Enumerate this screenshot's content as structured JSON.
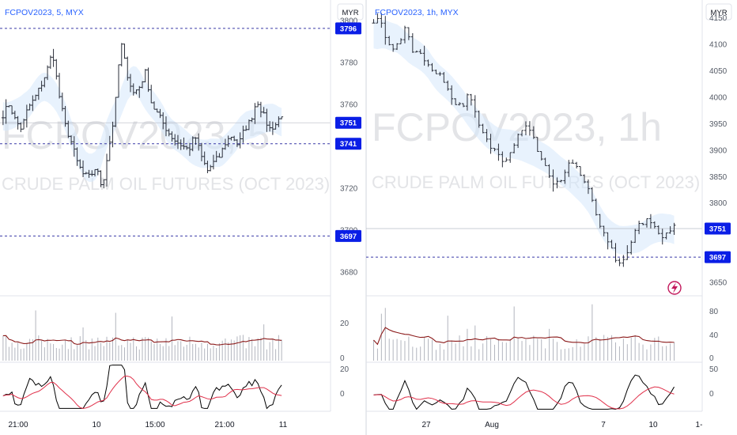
{
  "panels": [
    {
      "title": "FCPOV2023, 5, MYX",
      "currency": "MYR",
      "watermark_line1": "FCPOV2023, 5",
      "watermark_line2": "CRUDE PALM OIL FUTURES (OCT 2023)",
      "price_ticks": [
        "3800",
        "3780",
        "3760",
        "3740",
        "3720",
        "3700",
        "3680"
      ],
      "badges": [
        "3796",
        "3751",
        "3741",
        "3697"
      ],
      "volume_ticks": [
        "20",
        "0"
      ],
      "osc_ticks": [
        "20",
        "0"
      ],
      "time_ticks": [
        "21:00",
        "10",
        "15:00",
        "21:00",
        "11"
      ]
    },
    {
      "title": "FCPOV2023, 1h, MYX",
      "currency": "MYR",
      "watermark_line1": "FCPOV2023, 1h",
      "watermark_line2": "CRUDE PALM OIL FUTURES (OCT 2023)",
      "price_ticks": [
        "4150",
        "4100",
        "4050",
        "4000",
        "3950",
        "3900",
        "3850",
        "3800",
        "3750",
        "3700",
        "3650"
      ],
      "badges": [
        "3751",
        "3697"
      ],
      "volume_ticks": [
        "80",
        "40",
        "0"
      ],
      "osc_ticks": [
        "50",
        "0"
      ],
      "time_ticks": [
        "27",
        "Aug",
        "7",
        "10",
        "1-"
      ]
    }
  ],
  "colors": {
    "accent": "#2962ff",
    "badge": "#0a1ee6",
    "dashed_line": "#3a3aa8",
    "candle": "#2a2e39",
    "volume_bar": "#b2b5be",
    "volume_ma": "#8b1a1a",
    "osc_line": "#000000",
    "osc_signal": "#e0304a",
    "band_fill": "#d6e8fb",
    "icon": "#c2185b"
  },
  "chart_data": [
    {
      "type": "candlestick",
      "title": "FCPOV2023, 5, MYX",
      "y_axis": "price (MYR)",
      "ylim": [
        3670,
        3805
      ],
      "levels": [
        3796,
        3741,
        3697
      ],
      "last_price": 3751,
      "close_path": [
        3755,
        3760,
        3752,
        3748,
        3758,
        3762,
        3768,
        3775,
        3785,
        3765,
        3750,
        3742,
        3732,
        3726,
        3725,
        3730,
        3720,
        3738,
        3755,
        3790,
        3775,
        3765,
        3768,
        3775,
        3760,
        3755,
        3750,
        3745,
        3742,
        3740,
        3738,
        3745,
        3735,
        3728,
        3732,
        3735,
        3742,
        3745,
        3740,
        3748,
        3752,
        3762,
        3755,
        3748,
        3750,
        3755
      ],
      "volume_ylim": [
        0,
        30
      ],
      "oscillator_ylim": [
        -12,
        25
      ]
    },
    {
      "type": "candlestick",
      "title": "FCPOV2023, 1h, MYX",
      "y_axis": "price (MYR)",
      "ylim": [
        3630,
        4165
      ],
      "levels": [
        3697
      ],
      "last_price": 3751,
      "close_path": [
        4140,
        4150,
        4120,
        4100,
        4090,
        4110,
        4130,
        4090,
        4085,
        4080,
        4060,
        4040,
        4050,
        4030,
        4000,
        3990,
        3980,
        4000,
        3990,
        3950,
        3930,
        3910,
        3900,
        3890,
        3880,
        3900,
        3920,
        3940,
        3950,
        3930,
        3900,
        3880,
        3850,
        3830,
        3840,
        3860,
        3880,
        3870,
        3850,
        3830,
        3800,
        3770,
        3740,
        3720,
        3700,
        3680,
        3690,
        3720,
        3750,
        3760,
        3770,
        3760,
        3740,
        3730,
        3750,
        3760
      ],
      "volume_ylim": [
        0,
        100
      ],
      "oscillator_ylim": [
        -30,
        60
      ]
    }
  ]
}
